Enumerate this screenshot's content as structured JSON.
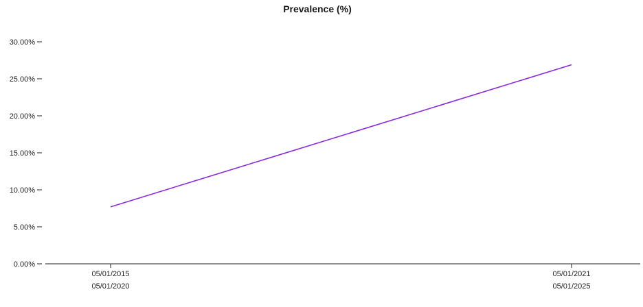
{
  "chart_data": {
    "type": "line",
    "title": "Prevalence (%)",
    "xlabel": "",
    "ylabel": "",
    "grid": false,
    "yticks": [
      {
        "value": 0,
        "label": "0.00%"
      },
      {
        "value": 5,
        "label": "5.00%"
      },
      {
        "value": 10,
        "label": "10.00%"
      },
      {
        "value": 15,
        "label": "15.00%"
      },
      {
        "value": 20,
        "label": "20.00%"
      },
      {
        "value": 25,
        "label": "25.00%"
      },
      {
        "value": 30,
        "label": "30.00%"
      }
    ],
    "ylim": [
      0,
      30
    ],
    "xticks": [
      {
        "line1": "05/01/2015",
        "line2": "05/01/2020"
      },
      {
        "line1": "05/01/2021",
        "line2": "05/01/2025"
      }
    ],
    "series": [
      {
        "color": "#8a2be2",
        "points": [
          {
            "x_index": 0,
            "y": 7.7
          },
          {
            "x_index": 1,
            "y": 26.9
          }
        ]
      }
    ]
  }
}
